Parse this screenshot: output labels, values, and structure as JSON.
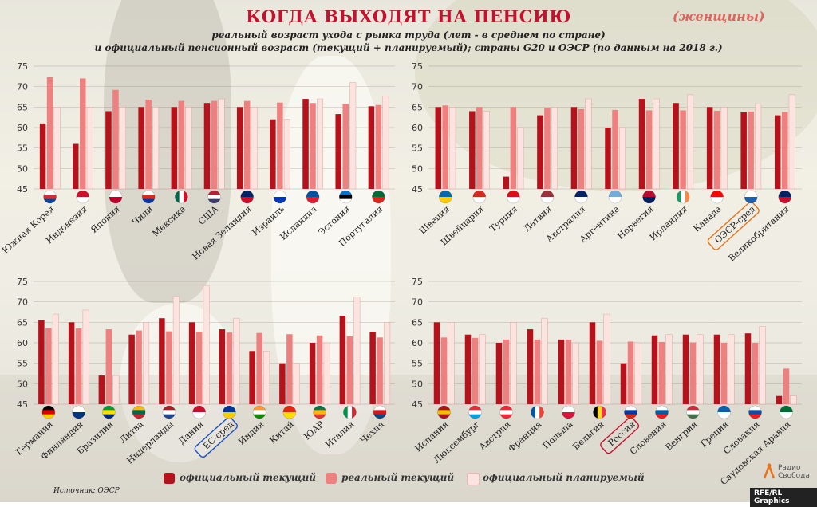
{
  "title": "КОГДА ВЫХОДЯТ НА ПЕНСИЮ",
  "title_note": "(женщины)",
  "subtitle_line1": "реальный возраст ухода с рынка труда (лет - в среднем по стране)",
  "subtitle_line2": "и официальный пенсионный возраст (текущий + планируемый); страны G20 и ОЭСР (по данным на 2018 г.)",
  "legend": {
    "official_current": "официальный текущий",
    "real_current": "реальный текущий",
    "official_planned": "официальный планируемый"
  },
  "source": "Источник: ОЭСР",
  "credit": "RFE/RL Graphics",
  "logo_text": "Радио Свобода",
  "colors": {
    "official_current": "#b5121b",
    "real_current": "#ef8080",
    "official_planned": "#fbe3e0",
    "title": "#c8102e",
    "highlight_oecd": "#e8731a",
    "highlight_eu": "#1f4fbf",
    "highlight_russia": "#c8102e"
  },
  "chart_data": [
    {
      "type": "bar",
      "ylim": [
        45,
        75
      ],
      "yticks": [
        45,
        50,
        55,
        60,
        65,
        70,
        75
      ],
      "categories": [
        "Южная Корея",
        "Индонезия",
        "Япония",
        "Чили",
        "Мексика",
        "США",
        "Новая Зеландия",
        "Израиль",
        "Исландия",
        "Эстония",
        "Португалия"
      ],
      "flags": [
        "south-korea-flag",
        "indonesia-flag",
        "japan-flag",
        "chile-flag",
        "mexico-flag",
        "usa-flag",
        "new-zealand-flag",
        "israel-flag",
        "iceland-flag",
        "estonia-flag",
        "portugal-flag"
      ],
      "series": [
        {
          "name": "официальный текущий",
          "values": [
            61,
            56,
            64,
            65,
            65,
            66,
            65,
            62,
            67,
            63.3,
            65.2
          ]
        },
        {
          "name": "реальный текущий",
          "values": [
            72.3,
            72,
            69.2,
            66.8,
            66.5,
            66.5,
            66.5,
            66.1,
            66,
            65.8,
            65.5
          ]
        },
        {
          "name": "официальный планируемый",
          "values": [
            65,
            65,
            65,
            65,
            65,
            67,
            65,
            62,
            67,
            71,
            67.7
          ]
        }
      ]
    },
    {
      "type": "bar",
      "ylim": [
        45,
        75
      ],
      "yticks": [
        45,
        50,
        55,
        60,
        65,
        70,
        75
      ],
      "categories": [
        "Швеция",
        "Швейцария",
        "Турция",
        "Латвия",
        "Австралия",
        "Аргентина",
        "Норвегия",
        "Ирландия",
        "Канада",
        "ОЭСР-сред",
        "Великобритания"
      ],
      "flags": [
        "sweden-flag",
        "switzerland-flag",
        "turkey-flag",
        "latvia-flag",
        "australia-flag",
        "argentina-flag",
        "norway-flag",
        "ireland-flag",
        "canada-flag",
        "oecd-emblem",
        "uk-flag"
      ],
      "highlight": "ОЭСР-сред",
      "series": [
        {
          "name": "официальный текущий",
          "values": [
            65,
            64,
            48,
            63,
            65,
            60,
            67,
            66,
            65,
            63.7,
            63
          ]
        },
        {
          "name": "реальный текущий",
          "values": [
            65.4,
            65,
            65,
            64.8,
            64.5,
            64.3,
            64.2,
            64.2,
            64.1,
            63.9,
            63.8
          ]
        },
        {
          "name": "официальный планируемый",
          "values": [
            65,
            64,
            60,
            65,
            67,
            60,
            67,
            68,
            65,
            65.8,
            68
          ]
        }
      ]
    },
    {
      "type": "bar",
      "ylim": [
        45,
        75
      ],
      "yticks": [
        45,
        50,
        55,
        60,
        65,
        70,
        75
      ],
      "categories": [
        "Германия",
        "Финляндия",
        "Бразилия",
        "Литва",
        "Нидерланды",
        "Дания",
        "ЕС-сред",
        "Индия",
        "Китай",
        "ЮАР",
        "Италия",
        "Чехия"
      ],
      "flags": [
        "germany-flag",
        "finland-flag",
        "brazil-flag",
        "lithuania-flag",
        "netherlands-flag",
        "denmark-flag",
        "eu-flag",
        "india-flag",
        "china-flag",
        "south-africa-flag",
        "italy-flag",
        "czech-flag"
      ],
      "highlight": "ЕС-сред",
      "series": [
        {
          "name": "официальный текущий",
          "values": [
            65.5,
            65,
            52,
            62,
            66,
            65,
            63.3,
            58,
            55,
            60,
            66.6,
            62.7
          ]
        },
        {
          "name": "реальный текущий",
          "values": [
            63.6,
            63.5,
            63.3,
            63,
            62.8,
            62.7,
            62.5,
            62.4,
            62.1,
            61.8,
            61.6,
            61.3
          ]
        },
        {
          "name": "официальный планируемый",
          "values": [
            67,
            68,
            52,
            65,
            71.3,
            74,
            66,
            58,
            55,
            60,
            71.2,
            65
          ]
        }
      ]
    },
    {
      "type": "bar",
      "ylim": [
        45,
        75
      ],
      "yticks": [
        45,
        50,
        55,
        60,
        65,
        70,
        75
      ],
      "categories": [
        "Испания",
        "Люксембург",
        "Австрия",
        "Франция",
        "Польша",
        "Бельгия",
        "Россия",
        "Словения",
        "Венгрия",
        "Греция",
        "Словакия",
        "Саудовская Аравия"
      ],
      "flags": [
        "spain-flag",
        "luxembourg-flag",
        "austria-flag",
        "france-flag",
        "poland-flag",
        "belgium-flag",
        "russia-flag",
        "slovenia-flag",
        "hungary-flag",
        "greece-flag",
        "slovakia-flag",
        "saudi-arabia-flag"
      ],
      "highlight": "Россия",
      "series": [
        {
          "name": "официальный текущий",
          "values": [
            65,
            62,
            60,
            63.3,
            60.8,
            65,
            55,
            61.8,
            62,
            62,
            62.3,
            47
          ]
        },
        {
          "name": "реальный текущий",
          "values": [
            61.3,
            61.2,
            60.8,
            60.8,
            60.8,
            60.5,
            60.3,
            60.2,
            60.1,
            60,
            60,
            53.7
          ]
        },
        {
          "name": "официальный планируемый",
          "values": [
            65,
            62,
            65,
            66,
            60,
            67,
            60,
            62,
            62,
            62,
            64,
            47
          ]
        }
      ]
    }
  ]
}
